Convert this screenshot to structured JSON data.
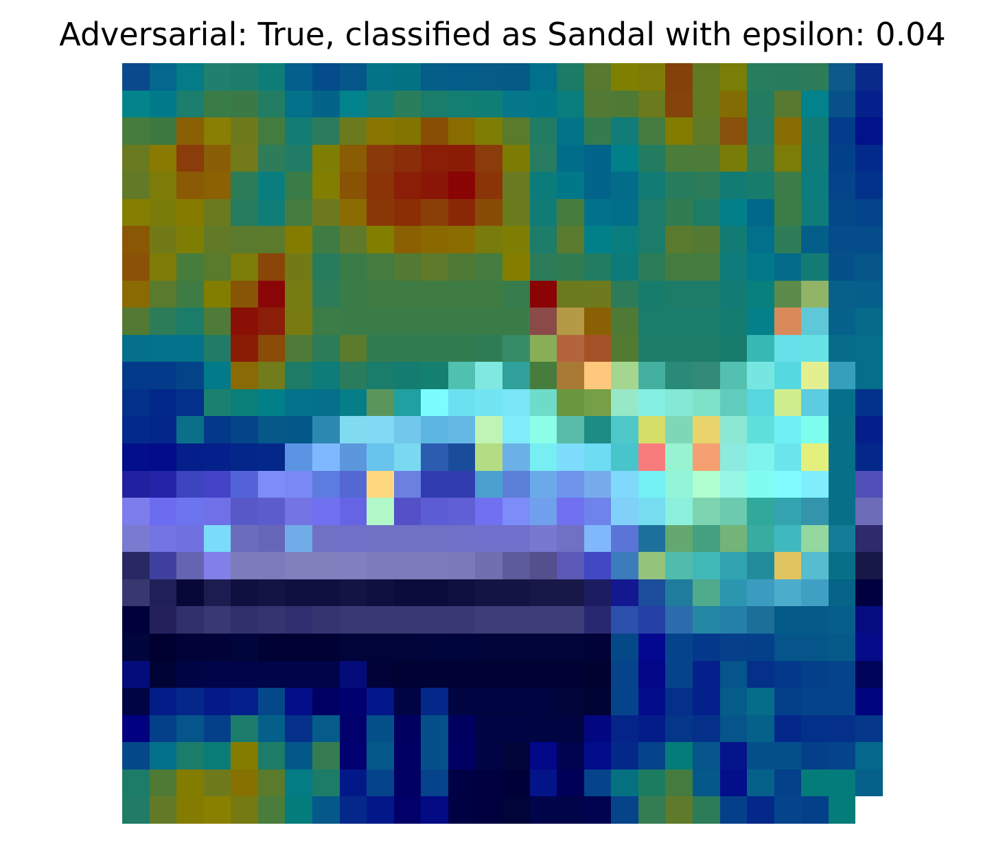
{
  "figure": {
    "title": "Adversarial: True, classified as Sandal with epsilon: 0.04"
  },
  "image_grid": {
    "rows": 28,
    "cols": 28,
    "colors": [
      [
        "#0a4a8a",
        "#03678e",
        "#047b86",
        "#1f8070",
        "#1d7d6c",
        "#0e7d77",
        "#035f8c",
        "#044c8a",
        "#05568a",
        "#037488",
        "#037384",
        "#045e88",
        "#045d88",
        "#055c87",
        "#065a86",
        "#01708a",
        "#1a7c66",
        "#577a30",
        "#808000",
        "#7e7c06",
        "#84420a",
        "#617a22",
        "#797e06",
        "#287d5e",
        "#287b5c",
        "#2d7d5a",
        "#0d5a8a",
        "#0a2a8a"
      ],
      [
        "#02848a",
        "#007a8a",
        "#1c7e6c",
        "#3a7c48",
        "#3b7a46",
        "#227d62",
        "#04718a",
        "#046488",
        "#02828a",
        "#137f76",
        "#2a7e5c",
        "#1a7d6c",
        "#137e72",
        "#0f7f76",
        "#04788a",
        "#01788a",
        "#0a7d7e",
        "#527a34",
        "#4e7a36",
        "#6a7a1c",
        "#84440c",
        "#627a22",
        "#846c04",
        "#247c60",
        "#577a30",
        "#02828a",
        "#07508a",
        "#04208a"
      ],
      [
        "#467c3c",
        "#3c7a42",
        "#8a6004",
        "#887e04",
        "#6f7a1c",
        "#447c40",
        "#137d74",
        "#2b7c5c",
        "#6c7a1e",
        "#887600",
        "#827400",
        "#884e06",
        "#886c00",
        "#7e7e04",
        "#5a7a2c",
        "#227c64",
        "#02748a",
        "#347c50",
        "#107d78",
        "#447c40",
        "#827c00",
        "#5e7a28",
        "#88500a",
        "#207c66",
        "#886c04",
        "#117c76",
        "#033c8a",
        "#02128a"
      ],
      [
        "#6a7a20",
        "#8a7a02",
        "#8a3c0a",
        "#8a5e06",
        "#727a1a",
        "#2e7c58",
        "#207c66",
        "#7e7e04",
        "#8a5c04",
        "#8a3a0a",
        "#8a2e0a",
        "#8a1e06",
        "#8a1c06",
        "#8a3c0a",
        "#7c7c04",
        "#287c60",
        "#006e8a",
        "#02648a",
        "#02808a",
        "#247c60",
        "#4a7c3a",
        "#4c7c38",
        "#7a7c0a",
        "#2c7c5a",
        "#7c7c08",
        "#0e7c7a",
        "#03408a",
        "#022a8a"
      ],
      [
        "#627a28",
        "#7e7c08",
        "#8a5a04",
        "#8a6204",
        "#2c7c58",
        "#0a7e7e",
        "#3a7c48",
        "#827e02",
        "#8a5204",
        "#8a3408",
        "#8a1e06",
        "#8a1608",
        "#8a0404",
        "#8a3408",
        "#6a7a20",
        "#0c7c7a",
        "#01788a",
        "#02648a",
        "#026c8a",
        "#127c74",
        "#287c5e",
        "#2c7c5a",
        "#127c74",
        "#187c6c",
        "#3c7c48",
        "#0c7c7c",
        "#03448a",
        "#02328a"
      ],
      [
        "#847e02",
        "#7a7c0a",
        "#847a00",
        "#6c7a1e",
        "#267c5e",
        "#107d76",
        "#447c40",
        "#6e7a1e",
        "#8a6c02",
        "#8a3808",
        "#8a2e06",
        "#8a3e08",
        "#8a2806",
        "#884c06",
        "#6c7a1e",
        "#117c76",
        "#467c3c",
        "#02728a",
        "#026e8a",
        "#1c7c6a",
        "#327c52",
        "#1e7c66",
        "#02808a",
        "#02688a",
        "#3c7c46",
        "#0e7c7a",
        "#05488a",
        "#03448a"
      ],
      [
        "#8a5804",
        "#727a18",
        "#7e7e04",
        "#627a28",
        "#5a7a2e",
        "#5c7a2c",
        "#847c00",
        "#3e7c44",
        "#5e7a2a",
        "#827e00",
        "#8a6002",
        "#8a6a00",
        "#8a6c00",
        "#787c0c",
        "#7e7e04",
        "#1e7c6a",
        "#5a7a2e",
        "#02808a",
        "#0a7e7e",
        "#1c7c6a",
        "#5a7a2e",
        "#527a34",
        "#127c74",
        "#02708a",
        "#2e7c58",
        "#045e8a",
        "#054c8a",
        "#044c8a"
      ],
      [
        "#8a5206",
        "#7e7c06",
        "#467c3c",
        "#5a7a2c",
        "#7c7c08",
        "#8a4608",
        "#727a18",
        "#287c5e",
        "#3a7c48",
        "#447c40",
        "#527a34",
        "#5e7a2a",
        "#4e7a36",
        "#447c40",
        "#847e00",
        "#2c7c5a",
        "#327c52",
        "#227c62",
        "#0c7c7a",
        "#2c7c5a",
        "#447c40",
        "#447c40",
        "#0e7c7a",
        "#02788a",
        "#046c8a",
        "#127c74",
        "#06508a",
        "#06568a"
      ],
      [
        "#8a6a02",
        "#5a7a2e",
        "#3e7c44",
        "#827e02",
        "#885406",
        "#8a0606",
        "#767c12",
        "#2c7c5a",
        "#3a7c48",
        "#3e7c44",
        "#3e7c44",
        "#3e7c44",
        "#3e7c44",
        "#3e7c44",
        "#367c4c",
        "#8a0404",
        "#6c7a1e",
        "#6e7a1e",
        "#2c7c5a",
        "#187c6c",
        "#1c7c68",
        "#1c7c68",
        "#127c74",
        "#08807e",
        "#5c8a4a",
        "#92b466",
        "#06608a",
        "#065e8a"
      ],
      [
        "#527a34",
        "#2c7c5a",
        "#1c7c6a",
        "#4e7c38",
        "#8a1006",
        "#8a1e08",
        "#787c10",
        "#3c7c46",
        "#3a7c48",
        "#3a7c48",
        "#3a7c48",
        "#3a7c48",
        "#3a7c48",
        "#3a7c48",
        "#3a7c48",
        "#8a4a48",
        "#b49a44",
        "#8a6004",
        "#4e7a36",
        "#1a7c6a",
        "#1a7c6a",
        "#1a7c6a",
        "#147c70",
        "#04808a",
        "#d88a5a",
        "#5ec8d8",
        "#06628a",
        "#066a8a"
      ],
      [
        "#04708a",
        "#03728a",
        "#03728a",
        "#207c66",
        "#8a1c06",
        "#8a4c08",
        "#4e7c38",
        "#2c7c5a",
        "#5c7a2c",
        "#327c52",
        "#327c52",
        "#327c52",
        "#327c52",
        "#2e7c56",
        "#368c66",
        "#8aae58",
        "#b4643c",
        "#a65228",
        "#527a30",
        "#1c7c68",
        "#1c7c68",
        "#1c7c68",
        "#187c6c",
        "#38b8b4",
        "#66e0e8",
        "#66e2e4",
        "#066c8a",
        "#066e8a"
      ],
      [
        "#033a8a",
        "#033a8a",
        "#034488",
        "#017a8a",
        "#8a6a04",
        "#727c1a",
        "#1e7c66",
        "#0e7c78",
        "#2a7c5c",
        "#1a7c6a",
        "#147c70",
        "#148070",
        "#50c0b0",
        "#80e8e0",
        "#30a09a",
        "#467c3c",
        "#a87a36",
        "#ffc87c",
        "#a4d690",
        "#44b0a0",
        "#2a8a78",
        "#348a78",
        "#54c0b0",
        "#78e6e0",
        "#56d8e0",
        "#e4f090",
        "#36a0bc",
        "#066e8a"
      ],
      [
        "#03308a",
        "#02288a",
        "#03308a",
        "#1c8070",
        "#0a8078",
        "#02808a",
        "#03728a",
        "#04708a",
        "#057e88",
        "#5a965c",
        "#20a0a0",
        "#7cfcff",
        "#6ae0f0",
        "#72e4f2",
        "#78e6f6",
        "#6edcc8",
        "#6a9640",
        "#76a048",
        "#96e8c6",
        "#84f0e4",
        "#84e8d4",
        "#7ee2c8",
        "#60ccbc",
        "#56d6de",
        "#d0ee8e",
        "#5ccce0",
        "#06708a"
      ],
      [
        "#03328a",
        "#032a8a",
        "#03268a",
        "#0a708a",
        "#03388a",
        "#044488",
        "#055888",
        "#03588a",
        "#2c88b0",
        "#80daf0",
        "#80daf4",
        "#72c8ec",
        "#5cb4e0",
        "#66b8e4",
        "#c0f4b4",
        "#80ecfc",
        "#8cffe8",
        "#58bca8",
        "#1c8c84",
        "#4ec8c8",
        "#d6de6a",
        "#7ed8b8",
        "#e8d46a",
        "#8ce8d4",
        "#60e0dc",
        "#6ef0f4",
        "#7effee",
        "#077088"
      ],
      [
        "#041e8a",
        "#020e8a",
        "#020c8a",
        "#041e8a",
        "#04208a",
        "#03268a",
        "#03288a",
        "#5c94e4",
        "#80b8ff",
        "#5c96dc",
        "#68c4ec",
        "#7ad8f0",
        "#2c5cb0",
        "#1a4c9c",
        "#b4dc82",
        "#6cb0e8",
        "#76eef2",
        "#7edcfc",
        "#6edcf2",
        "#48c4cc",
        "#f87c7c",
        "#98f4d0",
        "#f4a070",
        "#8ceade",
        "#7ef4ec",
        "#6ce4ec",
        "#e4f07c",
        "#077088"
      ],
      [
        "#03288a",
        "#2020a0",
        "#2424a8",
        "#3c44c0",
        "#4444c8",
        "#5464d8",
        "#7c8cf8",
        "#7888f4",
        "#5c7ce0",
        "#5468d4",
        "#ffd880",
        "#6c80e0",
        "#303cb0",
        "#303cb0",
        "#4ca0d0",
        "#5c80d8",
        "#6aaaea",
        "#6e94ec",
        "#76acec",
        "#80d8fc",
        "#72f0f4",
        "#92f4d8",
        "#b0ffd0",
        "#96f8e4",
        "#80fcf0",
        "#80fcff",
        "#80eefc",
        "#077088"
      ],
      [
        "#5050b8",
        "#7c7cec",
        "#6c6cf0",
        "#6c74f0",
        "#7070e8",
        "#5858c8",
        "#5c5ccc",
        "#7474e4",
        "#7070f0",
        "#6464e4",
        "#b0f8c8",
        "#5450c8",
        "#5c5cd4",
        "#6060d4",
        "#7070f0",
        "#7c8cf8",
        "#70a0ec",
        "#7070f0",
        "#6e84ea",
        "#80d0fa",
        "#76dcf0",
        "#8cf0dc",
        "#7cd4b0",
        "#6ccaae",
        "#30a89c",
        "#34a4b0",
        "#3494ac",
        "#077088"
      ],
      [
        "#6c6cb8",
        "#7a7ad0",
        "#7474e4",
        "#7070e0",
        "#7adcf8",
        "#6c6cbc",
        "#6666b8",
        "#70ace8",
        "#7070c4",
        "#7070c8",
        "#7070c4",
        "#7070c4",
        "#7070c4",
        "#7070c8",
        "#7070cc",
        "#7070cc",
        "#7878d0",
        "#7070c4",
        "#80b8fc",
        "#5a74d8",
        "#1c709c",
        "#64a870",
        "#44a080",
        "#74b478",
        "#38aca0",
        "#40b8c0",
        "#94d8a0",
        "#147c96"
      ],
      [
        "#2e2a6c",
        "#282864",
        "#4040a0",
        "#6464b0",
        "#8080e8",
        "#7c7cbc",
        "#7c7cbc",
        "#8080bc",
        "#8080bc",
        "#8080c0",
        "#7c7cbc",
        "#7c7cbc",
        "#7c7cbc",
        "#7a7ab8",
        "#7070b0",
        "#5c5c9c",
        "#54508e",
        "#5c58b8",
        "#4048c4",
        "#3a7cbc",
        "#94c47c",
        "#50bcac",
        "#40b8b8",
        "#30a4b0",
        "#228c9c",
        "#e0c460",
        "#56bcd0",
        "#077088"
      ],
      [
        "#181848",
        "#383870",
        "#202058",
        "#080838",
        "#1c1c50",
        "#101040",
        "#141444",
        "#101040",
        "#101040",
        "#141444",
        "#101040",
        "#0c0c3c",
        "#0c0c3c",
        "#101040",
        "#141444",
        "#141444",
        "#181848",
        "#181848",
        "#1c1c60",
        "#141890",
        "#1c4c9c",
        "#207c9c",
        "#50aa8c",
        "#2c96b0",
        "#3c9cc0",
        "#4caccc",
        "#40a0c4",
        "#066488"
      ],
      [
        "#000040",
        "#00003c",
        "#24205c",
        "#30306c",
        "#383874",
        "#30306c",
        "#343470",
        "#303070",
        "#343470",
        "#383874",
        "#383874",
        "#383874",
        "#383874",
        "#383874",
        "#3c3c78",
        "#3c3c78",
        "#3c3c78",
        "#3c3c78",
        "#282870",
        "#2c50ac",
        "#2440a4",
        "#2c6cac",
        "#2488a4",
        "#2480a8",
        "#1c7098",
        "#045a88",
        "#045a88",
        "#065e8a"
      ],
      [
        "#040c80",
        "#00063c",
        "#000030",
        "#000238",
        "#000238",
        "#00063c",
        "#000234",
        "#000234",
        "#000234",
        "#000438",
        "#000438",
        "#000438",
        "#00063c",
        "#00043c",
        "#000438",
        "#000438",
        "#000438",
        "#000438",
        "#000238",
        "#044888",
        "#040890",
        "#05448c",
        "#04388a",
        "#06408a",
        "#04408a",
        "#05548a",
        "#05548a",
        "#065a8a"
      ],
      [
        "#040a88",
        "#040c7c",
        "#000434",
        "#000444",
        "#000448",
        "#000448",
        "#000448",
        "#000448",
        "#000448",
        "#040c7c",
        "#000238",
        "#000234",
        "#000234",
        "#000234",
        "#000234",
        "#000234",
        "#000234",
        "#000234",
        "#000230",
        "#05448a",
        "#040688",
        "#05448a",
        "#04208a",
        "#05548a",
        "#04308a",
        "#04388a",
        "#04408a",
        "#05448a"
      ],
      [
        "#000458",
        "#000444",
        "#031c88",
        "#04288a",
        "#031a88",
        "#04208a",
        "#05488a",
        "#030e88",
        "#000064",
        "#000070",
        "#03168a",
        "#000444",
        "#04288a",
        "#000440",
        "#000440",
        "#000440",
        "#000440",
        "#000438",
        "#000434",
        "#05448a",
        "#020c8a",
        "#04308a",
        "#04208a",
        "#055c8a",
        "#056c8a",
        "#04408a",
        "#05448a",
        "#05448a"
      ],
      [
        "#00047c",
        "#000080",
        "#04408a",
        "#05548a",
        "#04408a",
        "#1c7c6c",
        "#04608a",
        "#04308a",
        "#055c8a",
        "#00006c",
        "#05508a",
        "#000060",
        "#05508a",
        "#000060",
        "#000444",
        "#000444",
        "#000440",
        "#000440",
        "#020680",
        "#042488",
        "#031c88",
        "#04368a",
        "#04308a",
        "#05548a",
        "#05608a",
        "#03288a",
        "#03308a",
        "#04308a"
      ],
      [
        "#05388a",
        "#05488a",
        "#03708a",
        "#1c7c6a",
        "#0a7c78",
        "#847c00",
        "#1c7c68",
        "#03588a",
        "#367c52",
        "#000070",
        "#05588a",
        "#000064",
        "#05508a",
        "#000064",
        "#000444",
        "#000438",
        "#020888",
        "#000450",
        "#020c88",
        "#03288a",
        "#05448a",
        "#047c7a",
        "#05548a",
        "#04148a",
        "#05508a",
        "#05508a",
        "#04408a",
        "#05448a"
      ],
      [
        "#05688a",
        "#1c7c68",
        "#4e7a36",
        "#847c00",
        "#6e7a1c",
        "#867200",
        "#5a7a2c",
        "#037c84",
        "#1c7c68",
        "#031888",
        "#05448a",
        "#000064",
        "#05448a",
        "#000044",
        "#000040",
        "#000038",
        "#031488",
        "#000058",
        "#05448a",
        "#047080",
        "#1c7c60",
        "#447c40",
        "#05588a",
        "#020e8a",
        "#05608a",
        "#05408a",
        "#047c7a",
        "#047c7c"
      ],
      [
        "#05608a",
        "#207c66",
        "#627a28",
        "#847c00",
        "#8a8000",
        "#767a12",
        "#4a7c3c",
        "#047c7c",
        "#05588a",
        "#04288a",
        "#031888",
        "#000068",
        "#020a84",
        "#000044",
        "#000040",
        "#000438",
        "#000448",
        "#000448",
        "#000450",
        "#05448a",
        "#347c52",
        "#5e7a2a",
        "#2c7c5a",
        "#04408a",
        "#04288a",
        "#05448a",
        "#04408a",
        "#047c7a"
      ]
    ]
  }
}
